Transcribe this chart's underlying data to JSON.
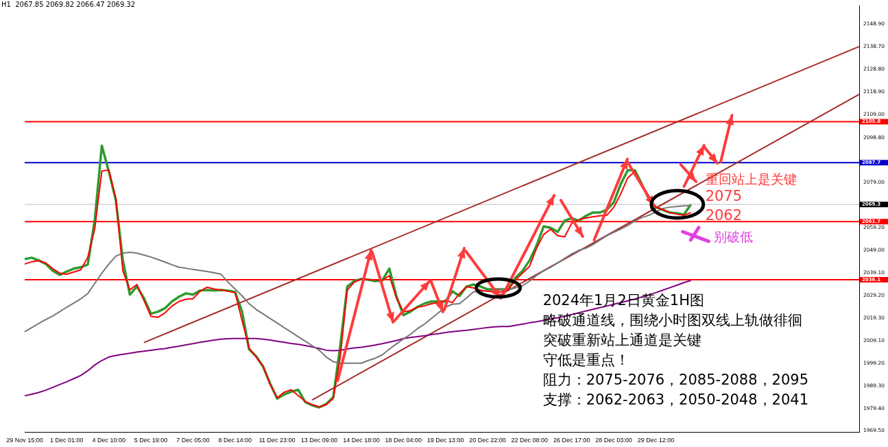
{
  "chart_data": {
    "type": "line",
    "categories": [
      "29 Nov 15:00",
      null,
      null,
      null,
      null,
      null,
      "1 Dec 01:00",
      null,
      null,
      null,
      null,
      null,
      "4 Dec 10:00",
      null,
      null,
      null,
      null,
      null,
      "5 Dec 19:00",
      null,
      null,
      null,
      null,
      null,
      "7 Dec 05:00",
      null,
      null,
      null,
      null,
      null,
      "8 Dec 14:00",
      null,
      null,
      null,
      null,
      null,
      "11 Dec 23:00",
      null,
      null,
      null,
      null,
      null,
      "13 Dec 09:00",
      null,
      null,
      null,
      null,
      null,
      "14 Dec 18:00",
      null,
      null,
      null,
      null,
      null,
      "18 Dec 04:00",
      null,
      null,
      null,
      null,
      null,
      "19 Dec 13:00",
      null,
      null,
      null,
      null,
      null,
      "20 Dec 22:00",
      null,
      null,
      null,
      null,
      null,
      "22 Dec 08:00",
      null,
      null,
      null,
      null,
      null,
      "26 Dec 17:00",
      null,
      null,
      null,
      null,
      null,
      "28 Dec 03:00",
      null,
      null,
      null,
      null,
      null,
      "29 Dec 12:00",
      null,
      null,
      null,
      null,
      null,
      null,
      null,
      null,
      null,
      null,
      null,
      null,
      null,
      null,
      null,
      null,
      null,
      null,
      null,
      null,
      null,
      null,
      null,
      null,
      null,
      null,
      null,
      null,
      null
    ],
    "series": [
      {
        "color": "#2e9a2e",
        "values": [
          2045.2,
          2045.8,
          2044.6,
          2043.1,
          2040.0,
          2038.2,
          2039.7,
          2041.0,
          2041.6,
          2042.8,
          2062.7,
          2095.2,
          2083.8,
          2071.1,
          2044.6,
          2029.5,
          2033.1,
          2028.0,
          2021.1,
          2022.0,
          2023.5,
          2026.5,
          2028.6,
          2030.1,
          2029.5,
          2031.3,
          2031.6,
          2031.3,
          2031.6,
          2031.3,
          2030.7,
          2022.0,
          2005.4,
          2002.4,
          1997.8,
          1990.3,
          1983.7,
          1985.5,
          1986.7,
          1987.6,
          1982.2,
          1980.7,
          1979.8,
          1981.3,
          1984.3,
          2006.9,
          2033.1,
          2035.5,
          2036.4,
          2036.1,
          2035.5,
          2035.8,
          2041.0,
          2028.9,
          2020.5,
          2022.0,
          2024.1,
          2025.6,
          2026.5,
          2026.5,
          2026.5,
          2031.0,
          2028.9,
          2033.1,
          2034.0,
          2033.1,
          2031.9,
          2031.9,
          2031.9,
          2031.9,
          2037.0,
          2040.0,
          2044.6,
          2051.2,
          2059.6,
          2059.0,
          2057.2,
          2062.1,
          2063.3,
          2062.1,
          2064.2,
          2065.7,
          2065.7,
          2066.9,
          2070.2,
          2078.3,
          2084.4,
          2084.4,
          2078.3,
          2071.7,
          2068.1,
          2066.9,
          2065.7,
          2065.4,
          2064.8,
          2069.3,
          null,
          null,
          null,
          null,
          null,
          null,
          null,
          null,
          null,
          null,
          null,
          null,
          null,
          null,
          null,
          null,
          null,
          null,
          null,
          null,
          null,
          null,
          null,
          null
        ]
      },
      {
        "color": "#ff0000",
        "values": [
          2043,
          2044,
          2044.5,
          2043.5,
          2041,
          2039,
          2038.5,
          2039.5,
          2040.5,
          2046,
          2058.7,
          2084,
          2084.5,
          2072,
          2040,
          2031.6,
          2034,
          2027,
          2020,
          2019.5,
          2021.5,
          2024.5,
          2026.5,
          2027.5,
          2027.7,
          2031,
          2032.8,
          2032,
          2031.6,
          2031,
          2030.4,
          2018,
          2006,
          2002,
          1998,
          1990,
          1984,
          1986.5,
          1987.6,
          1985,
          1982.5,
          1981,
          1980.1,
          1981,
          1983.7,
          2002,
          2031.6,
          2035,
          2036.4,
          2036.2,
          2036,
          2035.8,
          2037.9,
          2028,
          2022,
          2022.5,
          2024,
          2024.5,
          2025.5,
          2026,
          2027,
          2026,
          2030,
          2033,
          2032.5,
          2031.5,
          2031,
          2030.7,
          2030.7,
          2032,
          2036,
          2039,
          2042,
          2050,
          2056,
          2058.4,
          2055.5,
          2055,
          2061,
          2062.5,
          2063.3,
          2063.8,
          2064.3,
          2064.5,
          2068,
          2074,
          2081,
          2083.8,
          2078,
          2072,
          2068.1,
          2067,
          2065.7,
          2065,
          2064.5,
          2065.7,
          null,
          null,
          null,
          null,
          null,
          null,
          null,
          null,
          null,
          null,
          null,
          null,
          null,
          null,
          null,
          null,
          null,
          null,
          null,
          null,
          null,
          null,
          null,
          null
        ]
      },
      {
        "color": "#777777",
        "values": [
          2013.2,
          2015,
          2016.8,
          2018.5,
          2020.1,
          2022,
          2024,
          2025.8,
          2027.7,
          2030,
          2034.5,
          2039,
          2043,
          2046.5,
          2047.8,
          2048.2,
          2047.8,
          2047,
          2046.1,
          2045,
          2043.9,
          2042.7,
          2041.6,
          2041.2,
          2040.6,
          2040.2,
          2039.7,
          2039.2,
          2038.5,
          2035,
          2032,
          2029,
          2025.5,
          2023,
          2021,
          2019,
          2017,
          2015,
          2013,
          2011,
          2009,
          2007,
          2005,
          2002,
          2000,
          1999.3,
          1999.3,
          1999.3,
          1999.3,
          2000.5,
          2001.5,
          2003,
          2005.5,
          2007.8,
          2010,
          2012,
          2014.5,
          2016.5,
          2019,
          2021.5,
          2024,
          2025.3,
          2025.5,
          2028,
          2030.7,
          2031,
          2031.3,
          2031.5,
          2031.7,
          2031.8,
          2032.5,
          2033.5,
          2035.5,
          2038,
          2040,
          2041.6,
          2043.5,
          2045.5,
          2047.5,
          2049,
          2050,
          2051.5,
          2053.5,
          2055.5,
          2057,
          2058.4,
          2060,
          2062,
          2063.5,
          2064.5,
          2066,
          2067.5,
          2068.1,
          2068.4,
          2068.7,
          2068.7,
          null,
          null,
          null,
          null,
          null,
          null,
          null,
          null,
          null,
          null,
          null,
          null,
          null,
          null,
          null,
          null,
          null,
          null,
          null,
          null,
          null,
          null,
          null,
          null
        ]
      },
      {
        "color": "#800080",
        "values": [
          1984.9,
          1985.6,
          1986.4,
          1987.4,
          1988.6,
          1989.9,
          1991.1,
          1992.5,
          1993.9,
          1996,
          1998.5,
          2000.5,
          2002,
          2002.7,
          2003.2,
          2003.7,
          2004.2,
          2004.6,
          2005,
          2005.4,
          2005.7,
          2006.3,
          2006.8,
          2007.4,
          2007.9,
          2008.5,
          2009,
          2009.5,
          2009.9,
          2010.1,
          2010.2,
          2010.2,
          2010.2,
          2010.2,
          2009.9,
          2009.5,
          2009,
          2008.5,
          2008,
          2007.6,
          2007.1,
          2006.5,
          2005.8,
          2005,
          2004.8,
          2005,
          2005.6,
          2006,
          2006.3,
          2006.8,
          2007.3,
          2007.9,
          2008.6,
          2009.3,
          2010.2,
          2010.6,
          2011,
          2011.4,
          2011.9,
          2012.3,
          2012.8,
          2013.2,
          2013.5,
          2013.8,
          2014.2,
          2014.6,
          2015,
          2015.3,
          2015.5,
          2015.5,
          2016,
          2016.5,
          2017.1,
          2017.6,
          2018.2,
          2018.8,
          2019.3,
          2020,
          2020.8,
          2021.5,
          2022.3,
          2023,
          2023.8,
          2024.5,
          2025.3,
          2026,
          2026.8,
          2027.6,
          2028.5,
          2029.4,
          2030.4,
          2031.5,
          2032.6,
          2033.7,
          2034.8,
          2035.8,
          null,
          null,
          null,
          null,
          null,
          null,
          null,
          null,
          null,
          null,
          null,
          null,
          null,
          null,
          null,
          null,
          null,
          null,
          null,
          null,
          null,
          null,
          null,
          null
        ]
      },
      {
        "type": "line",
        "color": "#a52a2a",
        "values": [
          null,
          null,
          null,
          null,
          null,
          null,
          null,
          null,
          null,
          null,
          null,
          null,
          null,
          null,
          null,
          null,
          null,
          2008.4,
          null,
          null,
          null,
          null,
          null,
          null,
          null,
          null,
          null,
          null,
          null,
          null,
          null,
          null,
          null,
          null,
          null,
          null,
          null,
          null,
          null,
          null,
          null,
          null,
          null,
          null,
          null,
          null,
          null,
          null,
          null,
          null,
          null,
          null,
          null,
          null,
          null,
          null,
          null,
          null,
          null,
          null,
          null,
          null,
          null,
          null,
          null,
          null,
          null,
          null,
          null,
          null,
          null,
          null,
          null,
          null,
          null,
          null,
          null,
          null,
          null,
          null,
          null,
          null,
          null,
          null,
          null,
          null,
          null,
          null,
          null,
          null,
          null,
          null,
          null,
          null,
          null,
          null,
          null,
          null,
          null,
          null,
          null,
          null,
          null,
          null,
          null,
          null,
          null,
          null,
          null,
          null,
          null,
          null,
          null,
          null,
          null,
          null,
          null,
          null,
          null,
          2138.9
        ]
      },
      {
        "type": "line",
        "color": "#a52a2a",
        "values": [
          null,
          null,
          null,
          null,
          null,
          null,
          null,
          null,
          null,
          null,
          null,
          null,
          null,
          null,
          null,
          null,
          null,
          null,
          null,
          null,
          null,
          null,
          null,
          null,
          null,
          null,
          null,
          null,
          null,
          null,
          null,
          null,
          null,
          null,
          null,
          null,
          null,
          null,
          null,
          null,
          null,
          1983.1,
          null,
          null,
          null,
          null,
          null,
          null,
          null,
          null,
          null,
          null,
          null,
          null,
          null,
          null,
          null,
          null,
          null,
          null,
          null,
          null,
          null,
          null,
          null,
          null,
          null,
          null,
          null,
          null,
          null,
          null,
          null,
          null,
          null,
          null,
          null,
          null,
          null,
          null,
          null,
          null,
          null,
          null,
          null,
          null,
          null,
          null,
          null,
          null,
          null,
          null,
          null,
          null,
          null,
          null,
          null,
          null,
          null,
          null,
          null,
          null,
          null,
          null,
          null,
          null,
          null,
          null,
          null,
          null,
          null,
          null,
          null,
          null,
          null,
          null,
          null,
          null,
          null,
          2117.8
        ]
      }
    ],
    "ylim": [
      1969,
      2157
    ],
    "yticks": [
      {
        "value": 1969.5,
        "label": "1969.50"
      },
      {
        "value": 1979.4,
        "label": "1979.40"
      },
      {
        "value": 1989.3,
        "label": "1989.30"
      },
      {
        "value": 1999.2,
        "label": "1999.20"
      },
      {
        "value": 2009.1,
        "label": "2009.10"
      },
      {
        "value": 2019.3,
        "label": "2019.30"
      },
      {
        "value": 2029.2,
        "label": "2029.20"
      },
      {
        "value": 2039.1,
        "label": "2039.10"
      },
      {
        "value": 2049,
        "label": "2049.00"
      },
      {
        "value": 2059.2,
        "label": "2059.20"
      },
      {
        "value": 2079,
        "label": "2079.00"
      },
      {
        "value": 2098.8,
        "label": "2098.80"
      },
      {
        "value": 2109,
        "label": "2109.00"
      },
      {
        "value": 2118.9,
        "label": "2118.90"
      },
      {
        "value": 2128.8,
        "label": "2128.80"
      },
      {
        "value": 2138.7,
        "label": "2138.70"
      },
      {
        "value": 2148.9,
        "label": "2148.90"
      }
    ],
    "ref_lines": [
      {
        "axis": "y",
        "value": 2105.8,
        "label": "2105.8",
        "color": "#ff0000"
      },
      {
        "axis": "y",
        "value": 2087.7,
        "label": "2087.7",
        "color": "#0000cc"
      },
      {
        "axis": "y",
        "value": 2069.3,
        "label": "2069.3",
        "color": "#bbbbbb"
      },
      {
        "axis": "y",
        "value": 2061.7,
        "label": "2061.7",
        "color": "#ff0000"
      },
      {
        "axis": "y",
        "value": 2036.1,
        "label": "2036.1",
        "color": "#ff0000"
      }
    ],
    "annotations": [
      "H1  2067.85 2069.82 2066.47 2069.32",
      "2024年1月2日黄金1H图",
      "略破通道线，围绕小时图双线上轨做徘徊",
      "突破重新站上通道是关键",
      "守低是重点！",
      "阻力：2075-2076，2085-2088，2095",
      "支撑：2062-2063，2050-2048，2041",
      "重回站上是关键",
      "2075",
      "2062",
      "别破低"
    ],
    "grid": false,
    "legend": false
  }
}
